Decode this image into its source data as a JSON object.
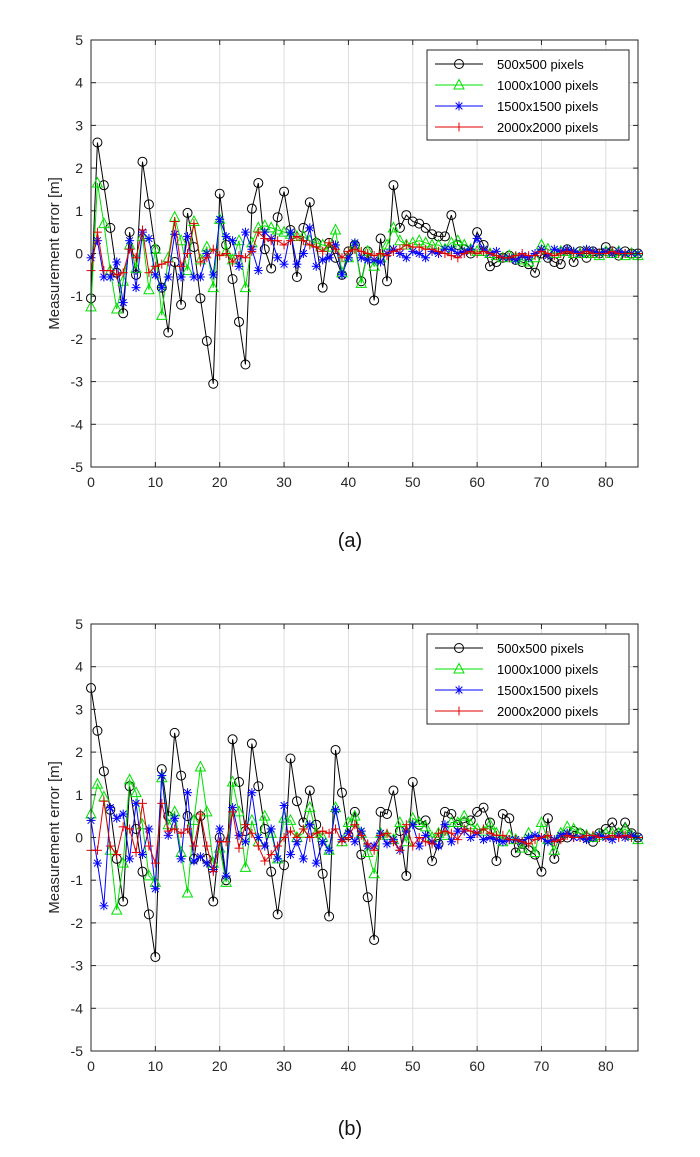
{
  "chart_data": [
    {
      "type": "line",
      "caption": "(a)",
      "ylabel": "Measurement error [m]",
      "xlim": [
        0,
        85
      ],
      "ylim": [
        -5,
        5
      ],
      "xticks": [
        0,
        10,
        20,
        30,
        40,
        50,
        60,
        70,
        80
      ],
      "yticks": [
        -5,
        -4,
        -3,
        -2,
        -1,
        0,
        1,
        2,
        3,
        4,
        5
      ],
      "grid": true,
      "legend_position": "top-right",
      "series": [
        {
          "name": "500x500 pixels",
          "color": "#000000",
          "marker": "circle",
          "values": [
            -1.05,
            2.6,
            1.6,
            0.6,
            -0.45,
            -1.4,
            0.5,
            -0.5,
            2.15,
            1.15,
            0.1,
            -0.8,
            -1.85,
            -0.2,
            -1.2,
            0.95,
            0.15,
            -1.05,
            -2.05,
            -3.05,
            1.4,
            0.2,
            -0.6,
            -1.6,
            -2.6,
            1.05,
            1.65,
            0.1,
            -0.35,
            0.85,
            1.45,
            0.55,
            -0.55,
            0.6,
            1.2,
            0.25,
            -0.8,
            0.25,
            -0.1,
            -0.5,
            0.05,
            0.2,
            -0.65,
            0.05,
            -1.1,
            0.35,
            -0.65,
            1.6,
            0.6,
            0.9,
            0.75,
            0.7,
            0.6,
            0.45,
            0.4,
            0.4,
            0.9,
            0.2,
            0.1,
            0.0,
            0.5,
            0.2,
            -0.3,
            -0.2,
            -0.1,
            -0.05,
            -0.15,
            -0.2,
            -0.25,
            -0.45,
            0.0,
            -0.1,
            -0.2,
            -0.25,
            0.1,
            -0.2,
            0.05,
            -0.1,
            0.05,
            0.0,
            0.15,
            0.05,
            -0.05,
            0.05,
            0.0,
            0.0
          ]
        },
        {
          "name": "1000x1000 pixels",
          "color": "#00e000",
          "marker": "triangle",
          "values": [
            -1.25,
            1.65,
            0.7,
            -0.4,
            -1.3,
            -0.65,
            0.2,
            -0.35,
            0.4,
            -0.85,
            0.1,
            -1.45,
            -0.1,
            0.85,
            0.3,
            -0.4,
            0.75,
            -0.15,
            0.15,
            -0.8,
            0.8,
            0.05,
            -0.15,
            0.3,
            -0.8,
            0.25,
            0.6,
            0.65,
            0.6,
            0.55,
            0.5,
            0.45,
            0.4,
            0.4,
            0.3,
            0.25,
            0.2,
            0.15,
            0.55,
            -0.45,
            -0.1,
            0.2,
            -0.7,
            0.05,
            -0.3,
            -0.1,
            0.2,
            0.6,
            0.3,
            0.2,
            0.25,
            0.3,
            0.25,
            0.2,
            0.2,
            0.1,
            0.25,
            0.3,
            0.2,
            0.1,
            0.05,
            0.05,
            0.0,
            -0.05,
            -0.1,
            -0.05,
            -0.1,
            -0.15,
            -0.2,
            -0.1,
            0.2,
            0.1,
            0.0,
            0.05,
            0.05,
            0.0,
            0.0,
            0.05,
            0.0,
            -0.05,
            0.05,
            0.0,
            0.05,
            -0.05,
            0.0,
            -0.05
          ]
        },
        {
          "name": "1500x1500 pixels",
          "color": "#0000ff",
          "marker": "asterisk",
          "values": [
            -0.1,
            0.3,
            -0.55,
            -0.55,
            -0.2,
            -1.15,
            0.3,
            -0.8,
            0.5,
            0.35,
            -0.5,
            -0.8,
            -0.55,
            0.45,
            -0.55,
            0.4,
            -0.55,
            -0.55,
            0.0,
            -0.5,
            0.8,
            0.4,
            0.3,
            -0.3,
            0.5,
            0.1,
            -0.4,
            0.5,
            0.35,
            -0.1,
            -0.25,
            0.5,
            -0.25,
            0.0,
            0.6,
            -0.3,
            -0.15,
            -0.1,
            0.2,
            -0.5,
            -0.1,
            0.25,
            -0.1,
            -0.15,
            -0.15,
            -0.2,
            0.0,
            0.1,
            0.0,
            -0.1,
            0.05,
            0.0,
            -0.1,
            0.05,
            0.0,
            0.1,
            0.1,
            0.0,
            0.05,
            0.1,
            0.35,
            0.1,
            0.0,
            0.05,
            -0.1,
            -0.1,
            -0.15,
            -0.05,
            -0.1,
            0.0,
            0.1,
            -0.05,
            0.1,
            0.05,
            0.1,
            0.05,
            0.0,
            0.1,
            0.05,
            0.0,
            0.05,
            0.0,
            0.05,
            0.0,
            0.0,
            0.0
          ]
        },
        {
          "name": "2000x2000 pixels",
          "color": "#e00000",
          "marker": "plus",
          "values": [
            -0.4,
            0.5,
            -0.4,
            -0.4,
            -0.5,
            -0.45,
            0.1,
            -0.1,
            0.55,
            -0.45,
            -0.3,
            -0.25,
            -0.2,
            0.75,
            -0.3,
            0.0,
            0.7,
            -0.2,
            -0.1,
            0.1,
            -0.05,
            0.0,
            -0.2,
            -0.05,
            -0.1,
            0.05,
            0.5,
            0.35,
            0.3,
            0.3,
            0.2,
            0.3,
            0.4,
            0.3,
            0.2,
            0.15,
            0.05,
            0.25,
            0.1,
            -0.1,
            0.05,
            0.1,
            0.05,
            0.0,
            -0.05,
            0.0,
            -0.05,
            0.05,
            0.1,
            0.2,
            0.15,
            0.15,
            0.1,
            0.1,
            0.05,
            0.0,
            -0.05,
            -0.1,
            0.0,
            0.05,
            0.0,
            0.05,
            0.0,
            -0.05,
            -0.1,
            -0.1,
            -0.05,
            0.0,
            -0.05,
            -0.05,
            0.05,
            0.0,
            -0.05,
            0.0,
            0.05,
            0.0,
            0.0,
            0.05,
            0.0,
            0.0,
            0.0,
            0.05,
            0.0,
            0.0,
            0.0,
            0.0
          ]
        }
      ]
    },
    {
      "type": "line",
      "caption": "(b)",
      "ylabel": "Measurement error [m]",
      "xlim": [
        0,
        85
      ],
      "ylim": [
        -5,
        5
      ],
      "xticks": [
        0,
        10,
        20,
        30,
        40,
        50,
        60,
        70,
        80
      ],
      "yticks": [
        -5,
        -4,
        -3,
        -2,
        -1,
        0,
        1,
        2,
        3,
        4,
        5
      ],
      "grid": true,
      "legend_position": "top-right",
      "series": [
        {
          "name": "500x500 pixels",
          "color": "#000000",
          "marker": "circle",
          "values": [
            3.5,
            2.5,
            1.55,
            0.65,
            -0.5,
            -1.5,
            1.2,
            0.2,
            -0.8,
            -1.8,
            -2.8,
            1.6,
            0.5,
            2.45,
            1.45,
            0.5,
            -0.5,
            0.5,
            -0.5,
            -1.5,
            0.0,
            -1.0,
            2.3,
            1.3,
            0.15,
            2.2,
            1.2,
            0.2,
            -0.8,
            -1.8,
            -0.65,
            1.85,
            0.85,
            0.35,
            1.1,
            0.3,
            -0.85,
            -1.85,
            2.05,
            1.05,
            0.05,
            0.6,
            -0.4,
            -1.4,
            -2.4,
            0.6,
            0.55,
            1.1,
            0.15,
            -0.9,
            1.3,
            0.3,
            0.4,
            -0.55,
            -0.15,
            0.6,
            0.55,
            0.3,
            0.35,
            0.4,
            0.6,
            0.7,
            0.35,
            -0.55,
            0.55,
            0.45,
            -0.35,
            -0.15,
            -0.3,
            -0.4,
            -0.8,
            0.45,
            -0.5,
            0.0,
            0.0,
            0.15,
            0.1,
            0.0,
            -0.1,
            0.1,
            0.2,
            0.35,
            0.1,
            0.35,
            0.1,
            0.0
          ]
        },
        {
          "name": "1000x1000 pixels",
          "color": "#00e000",
          "marker": "triangle",
          "values": [
            0.55,
            1.25,
            0.95,
            -0.3,
            -1.7,
            -0.6,
            1.35,
            1.05,
            0.3,
            -0.9,
            -1.05,
            1.4,
            0.3,
            0.6,
            -0.35,
            -1.3,
            0.4,
            1.65,
            0.6,
            -0.6,
            -0.25,
            -1.05,
            1.3,
            0.6,
            -0.7,
            0.4,
            -0.1,
            0.5,
            0.1,
            -0.5,
            0.45,
            0.4,
            0.0,
            0.1,
            0.7,
            0.1,
            0.0,
            -0.3,
            0.7,
            -0.1,
            0.35,
            0.5,
            0.1,
            -0.35,
            -0.85,
            0.1,
            0.05,
            -0.05,
            0.35,
            -0.1,
            0.45,
            0.35,
            0.25,
            0.0,
            0.1,
            0.05,
            0.35,
            0.35,
            0.5,
            0.3,
            0.2,
            0.15,
            0.3,
            0.1,
            -0.1,
            0.05,
            -0.05,
            -0.25,
            0.1,
            -0.35,
            0.35,
            -0.05,
            -0.3,
            0.1,
            0.25,
            0.2,
            0.1,
            0.05,
            0.0,
            0.05,
            0.1,
            0.1,
            0.1,
            0.2,
            0.05,
            -0.05
          ]
        },
        {
          "name": "1500x1500 pixels",
          "color": "#0000ff",
          "marker": "asterisk",
          "values": [
            0.4,
            -0.6,
            -1.6,
            0.7,
            0.45,
            0.55,
            -0.5,
            0.8,
            -0.4,
            0.2,
            -1.2,
            1.45,
            0.05,
            0.45,
            -0.5,
            1.05,
            -0.55,
            -0.45,
            -0.6,
            -0.75,
            0.2,
            -0.9,
            0.7,
            0.05,
            -0.1,
            1.05,
            0.0,
            -0.2,
            0.2,
            -0.5,
            0.75,
            -0.4,
            -0.1,
            -0.5,
            0.3,
            -0.6,
            -0.1,
            -0.3,
            0.65,
            -0.05,
            0.1,
            -0.1,
            0.15,
            -0.2,
            -0.2,
            0.1,
            -0.15,
            -0.05,
            -0.3,
            0.15,
            0.3,
            -0.2,
            0.05,
            -0.1,
            -0.2,
            0.3,
            -0.1,
            0.15,
            0.15,
            0.0,
            0.1,
            -0.05,
            0.0,
            -0.05,
            -0.1,
            -0.05,
            -0.05,
            -0.1,
            0.0,
            0.05,
            0.0,
            -0.1,
            -0.05,
            0.05,
            0.1,
            0.0,
            0.0,
            -0.05,
            0.0,
            0.05,
            0.0,
            -0.05,
            0.05,
            0.0,
            0.05,
            0.0
          ]
        },
        {
          "name": "2000x2000 pixels",
          "color": "#e00000",
          "marker": "plus",
          "values": [
            -0.3,
            -0.3,
            0.85,
            -0.2,
            -0.4,
            0.25,
            0.2,
            -0.35,
            0.8,
            -0.2,
            -0.6,
            0.8,
            0.15,
            0.2,
            0.1,
            0.2,
            -0.2,
            0.55,
            -0.2,
            -0.8,
            -0.1,
            -0.1,
            0.6,
            -0.25,
            0.3,
            0.1,
            -0.2,
            -0.55,
            -0.4,
            -0.2,
            0.0,
            0.15,
            0.0,
            0.2,
            0.0,
            0.1,
            0.15,
            0.1,
            0.2,
            -0.1,
            0.0,
            0.3,
            0.05,
            -0.15,
            -0.3,
            0.05,
            0.1,
            -0.1,
            -0.3,
            0.3,
            -0.2,
            0.0,
            -0.1,
            -0.15,
            0.1,
            0.15,
            0.1,
            -0.05,
            0.2,
            0.15,
            0.1,
            0.2,
            0.1,
            0.05,
            0.05,
            -0.05,
            -0.05,
            -0.1,
            -0.15,
            -0.05,
            0.0,
            0.05,
            -0.1,
            -0.05,
            0.05,
            0.0,
            0.0,
            0.05,
            0.05,
            0.0,
            0.0,
            0.05,
            0.0,
            0.05,
            0.0,
            0.0
          ]
        }
      ]
    }
  ]
}
